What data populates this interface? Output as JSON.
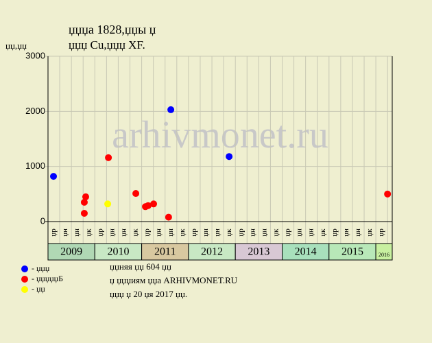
{
  "chart_data": {
    "type": "scatter",
    "title": "џџџа 1828,џџы џ",
    "subtitle": "џџџ Cu,џџџ XF.",
    "y_label": "џџ,џџ",
    "watermark": "arhivmonet.ru",
    "xlim": [
      0,
      29.4
    ],
    "xticks": [
      0,
      1,
      2,
      3,
      4,
      5,
      6,
      7,
      8,
      9,
      10,
      11,
      12,
      13,
      14,
      15,
      16,
      17,
      18,
      19,
      20,
      21,
      22,
      23,
      24,
      25,
      26,
      27,
      28,
      29
    ],
    "ylim": [
      0,
      3000
    ],
    "yticks": [
      0,
      1000,
      2000,
      3000
    ],
    "grid": true,
    "quarter_labels": [
      "џр",
      "џн",
      "џн",
      "џк",
      "џр",
      "џн",
      "џн",
      "џк",
      "џр",
      "џн",
      "џн",
      "џк",
      "џр",
      "џн",
      "џн",
      "џк",
      "џр",
      "џн",
      "џн",
      "џк",
      "џр",
      "џн",
      "џн",
      "џк",
      "џр",
      "џн",
      "џн",
      "џк",
      "џр"
    ],
    "year_groups": [
      {
        "label": "2009",
        "quarters": 4,
        "color": "#b0d8b4"
      },
      {
        "label": "2010",
        "quarters": 4,
        "color": "#c8e8c4"
      },
      {
        "label": "2011",
        "quarters": 4,
        "color": "#d8c8a0"
      },
      {
        "label": "2012",
        "quarters": 4,
        "color": "#c8e8c4"
      },
      {
        "label": "2013",
        "quarters": 4,
        "color": "#d8c8d4"
      },
      {
        "label": "2014",
        "quarters": 4,
        "color": "#a8e0bc"
      },
      {
        "label": "2015",
        "quarters": 4,
        "color": "#b8e8b8"
      },
      {
        "label": "2016",
        "quarters": 1.4,
        "color": "#c8f0a0"
      }
    ],
    "series": [
      {
        "name": "- џџџ",
        "color": "#0000ff",
        "x": [
          0.47,
          10.49,
          15.47
        ],
        "values": [
          820,
          2030,
          1180
        ]
      },
      {
        "name": "- џџџџџБ",
        "color": "#ff0000",
        "x": [
          3.1,
          3.1,
          3.22,
          5.16,
          7.5,
          8.32,
          8.55,
          9.02,
          10.3,
          29.0
        ],
        "values": [
          150,
          350,
          450,
          1160,
          510,
          270,
          290,
          320,
          80,
          500
        ]
      },
      {
        "name": "- џџ",
        "color": "#ffff00",
        "x": [
          5.1
        ],
        "values": [
          320
        ]
      }
    ],
    "notes": [
      "џџняя џџ 604 џџ",
      "џ џџџиям џџа ARHIVMONET.RU",
      "џџџ џ 20 џя 2017 џџ."
    ]
  }
}
